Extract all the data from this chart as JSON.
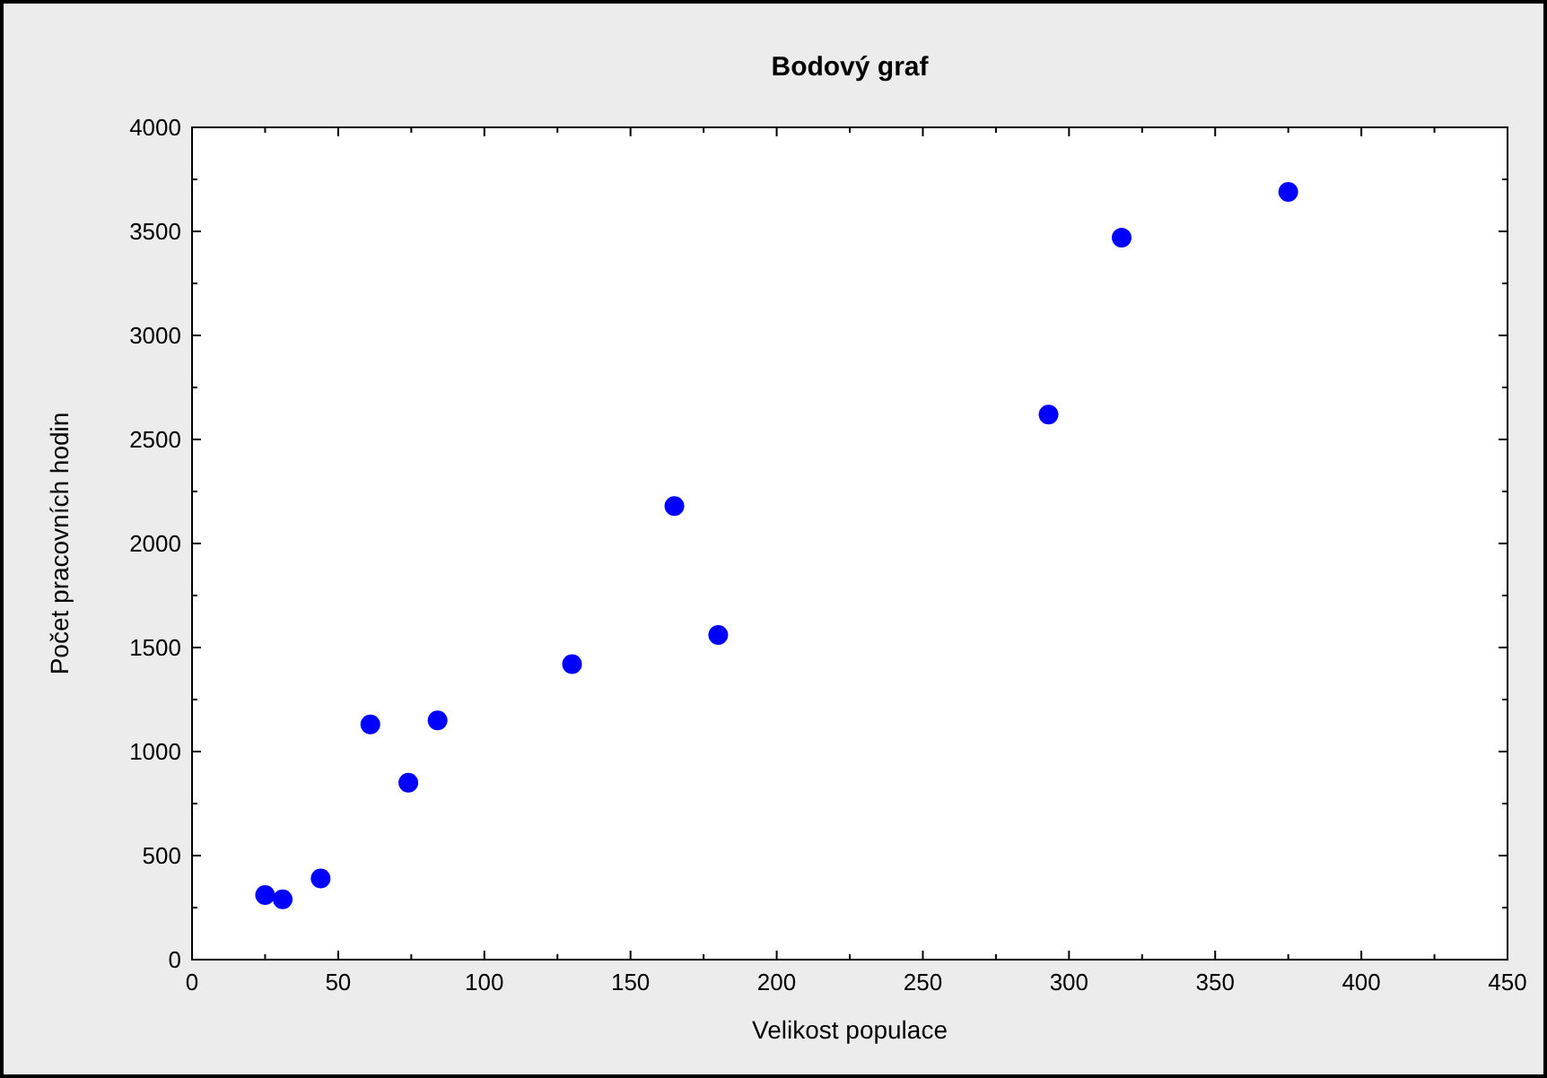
{
  "chart_data": {
    "type": "scatter",
    "title": "Bodový graf",
    "xlabel": "Velikost populace",
    "ylabel": "Počet pracovních hodin",
    "x": [
      25,
      31,
      44,
      61,
      74,
      84,
      130,
      165,
      180,
      293,
      318,
      375
    ],
    "series": [
      {
        "color": "#0000ff",
        "values": [
          310,
          290,
          390,
          1130,
          850,
          1150,
          1420,
          2180,
          1560,
          2620,
          3470,
          3690
        ]
      }
    ],
    "xlim": [
      0,
      450
    ],
    "xticks": [
      0,
      50,
      100,
      150,
      200,
      250,
      300,
      350,
      400,
      450
    ],
    "ylim": [
      0,
      4000
    ],
    "yticks": [
      0,
      500,
      1000,
      1500,
      2000,
      2500,
      3000,
      3500,
      4000
    ],
    "grid": false,
    "marker": "circle"
  }
}
